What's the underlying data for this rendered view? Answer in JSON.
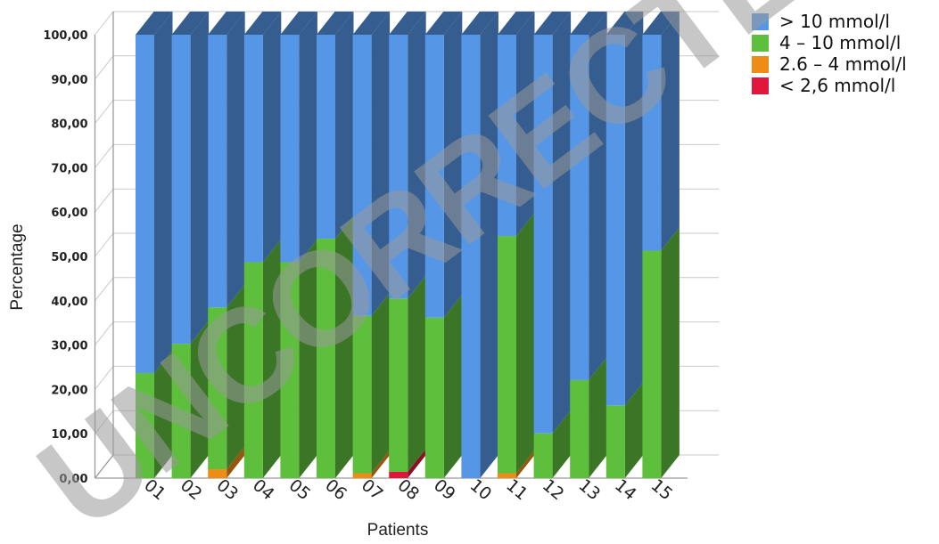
{
  "chart_data": {
    "type": "bar",
    "stacked": true,
    "style": "3d",
    "categories": [
      "01",
      "02",
      "03",
      "04",
      "05",
      "06",
      "07",
      "08",
      "09",
      "10",
      "11",
      "12",
      "13",
      "14",
      "15"
    ],
    "series": [
      {
        "name": "< 2,6 mmol/l",
        "color": "#e0163d",
        "values": [
          0,
          0,
          0,
          0,
          0,
          0,
          0,
          1.4,
          0,
          0,
          0,
          0,
          0,
          0,
          0
        ]
      },
      {
        "name": "2.6 – 4 mmol/l",
        "color": "#ef8c16",
        "values": [
          0,
          0,
          2,
          0,
          0,
          0,
          1.1,
          0,
          0,
          0,
          1.1,
          0,
          0,
          0,
          0
        ]
      },
      {
        "name": "4 – 10 mmol/l",
        "color": "#5dbf3b",
        "values": [
          23.7,
          30.3,
          36.5,
          48.7,
          48.7,
          54,
          35.5,
          39.1,
          36.2,
          0,
          53.5,
          10.1,
          22.1,
          16.4,
          51.3
        ]
      },
      {
        "name": "> 10 mmol/l",
        "color": "#5596e6",
        "values": [
          76.3,
          69.7,
          61.5,
          51.3,
          51.3,
          46,
          63.4,
          59.5,
          63.8,
          100,
          45.4,
          89.9,
          77.9,
          83.6,
          48.7
        ]
      }
    ],
    "yticks": [
      "0,00",
      "10,00",
      "20,00",
      "30,00",
      "40,00",
      "50,00",
      "60,00",
      "70,00",
      "80,00",
      "90,00",
      "100,00"
    ],
    "ylim": [
      0,
      100
    ],
    "xlabel": "Patients",
    "ylabel": "Percentage",
    "grid": true,
    "legend_position": "top-right"
  },
  "legend": {
    "items": [
      {
        "label": "> 10 mmol/l",
        "color": "#5596e6"
      },
      {
        "label": "4 – 10 mmol/l",
        "color": "#5dbf3b"
      },
      {
        "label": "2.6 – 4 mmol/l",
        "color": "#ef8c16"
      },
      {
        "label": "< 2,6 mmol/l",
        "color": "#e0163d"
      }
    ]
  },
  "watermark": {
    "text": "UNCORRECTED"
  }
}
